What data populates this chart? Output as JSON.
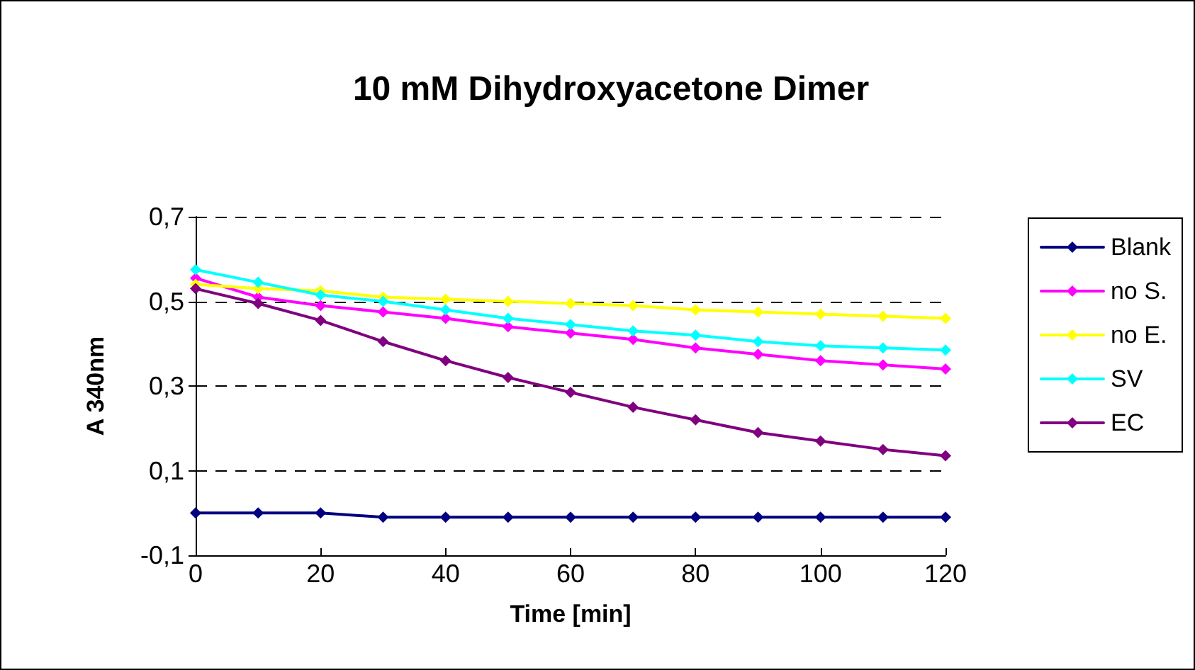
{
  "chart_data": {
    "type": "line",
    "title": "10 mM Dihydroxyacetone Dimer",
    "xlabel": "Time [min]",
    "ylabel": "A 340nm",
    "x": [
      0,
      10,
      20,
      30,
      40,
      50,
      60,
      70,
      80,
      90,
      100,
      110,
      120
    ],
    "series": [
      {
        "name": "Blank",
        "color": "#000080",
        "values": [
          0.0,
          0.0,
          0.0,
          -0.01,
          -0.01,
          -0.01,
          -0.01,
          -0.01,
          -0.01,
          -0.01,
          -0.01,
          -0.01,
          -0.01
        ]
      },
      {
        "name": "no S.",
        "color": "#ff00ff",
        "values": [
          0.555,
          0.51,
          0.49,
          0.475,
          0.46,
          0.44,
          0.425,
          0.41,
          0.39,
          0.375,
          0.36,
          0.35,
          0.34
        ]
      },
      {
        "name": "no E.",
        "color": "#ffff00",
        "values": [
          0.54,
          0.53,
          0.525,
          0.51,
          0.505,
          0.5,
          0.495,
          0.49,
          0.48,
          0.475,
          0.47,
          0.465,
          0.46
        ]
      },
      {
        "name": "SV",
        "color": "#00ffff",
        "values": [
          0.575,
          0.545,
          0.515,
          0.5,
          0.48,
          0.46,
          0.445,
          0.43,
          0.42,
          0.405,
          0.395,
          0.39,
          0.385
        ]
      },
      {
        "name": "EC",
        "color": "#800080",
        "values": [
          0.53,
          0.495,
          0.455,
          0.405,
          0.36,
          0.32,
          0.285,
          0.25,
          0.22,
          0.19,
          0.17,
          0.15,
          0.135
        ]
      }
    ],
    "xlim": [
      0,
      120
    ],
    "xticks": [
      0,
      20,
      40,
      60,
      80,
      100,
      120
    ],
    "ylim": [
      -0.1,
      0.7
    ],
    "yticks": [
      {
        "value": -0.1,
        "label": "-0,1"
      },
      {
        "value": 0.1,
        "label": "0,1"
      },
      {
        "value": 0.3,
        "label": "0,3"
      },
      {
        "value": 0.5,
        "label": "0,5"
      },
      {
        "value": 0.7,
        "label": "0,7"
      }
    ],
    "grid": "y",
    "legend": "right",
    "marker": "diamond",
    "line_style": "solid"
  }
}
